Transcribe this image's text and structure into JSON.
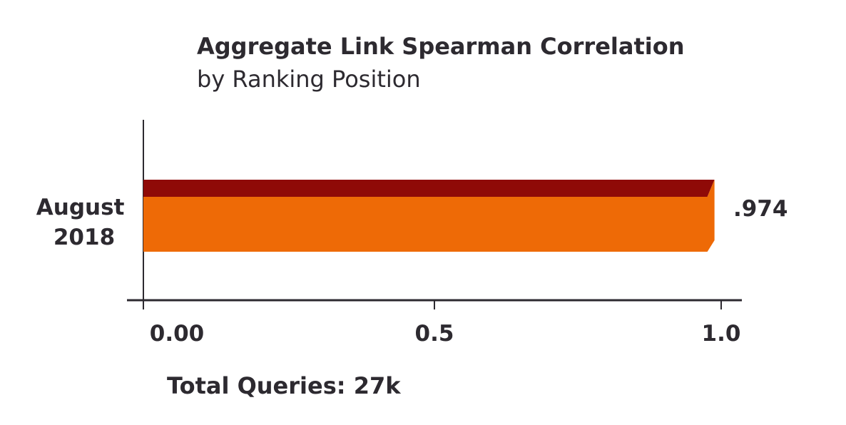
{
  "chart_data": {
    "type": "bar",
    "orientation": "horizontal",
    "title": "Aggregate Link Spearman Correlation",
    "subtitle": "by Ranking Position",
    "categories": [
      "August 2018"
    ],
    "category_lines": [
      [
        "August",
        "2018"
      ]
    ],
    "values": [
      0.974
    ],
    "value_labels": [
      ".974"
    ],
    "xlim": [
      0,
      1.0
    ],
    "xticks": [
      0.0,
      0.5,
      1.0
    ],
    "xtick_labels": [
      "0.00",
      "0.5",
      "1.0"
    ],
    "grid": false,
    "legend": "none",
    "footer": "Total Queries: 27k",
    "colors": {
      "bar_front": "#ee6a06",
      "bar_top": "#8f0a07",
      "axis": "#2d2a30",
      "text": "#2d2a30"
    }
  }
}
